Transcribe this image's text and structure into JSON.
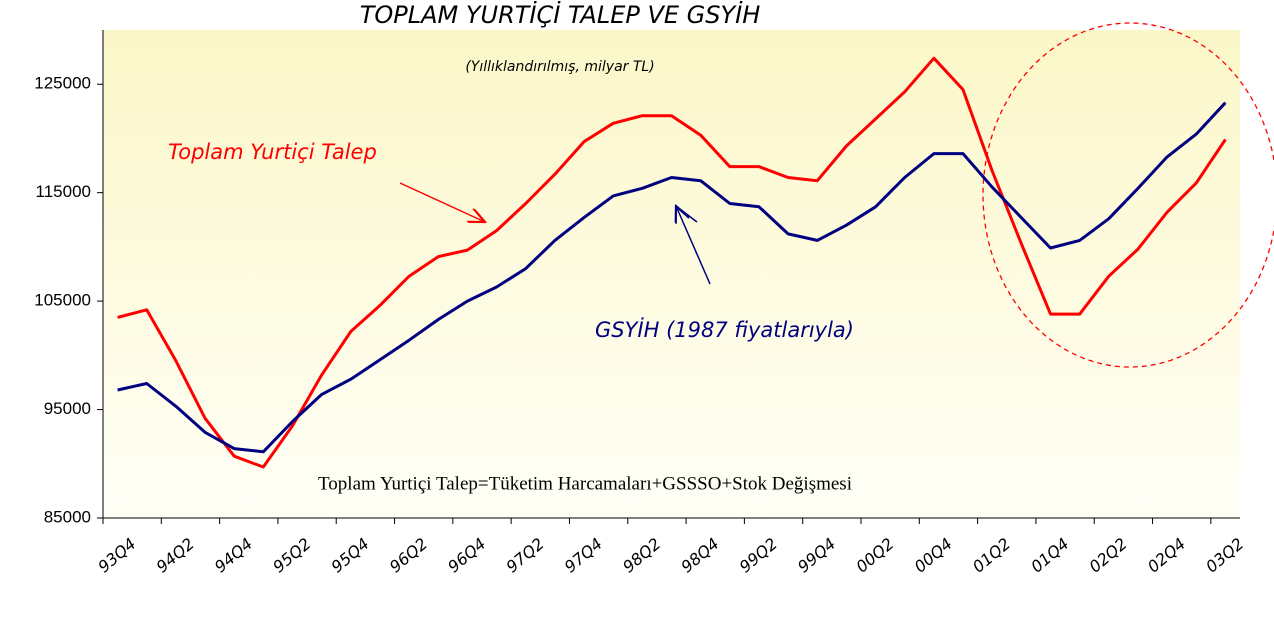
{
  "chart_data": {
    "type": "line",
    "title": "TOPLAM YURTİÇİ TALEP VE GSYİH",
    "subtitle": "(Yıllıklandırılmış, milyar TL)",
    "annotation": "Toplam Yurtiçi Talep=Tüketim Harcamaları+GSSSO+Stok Değişmesi",
    "categories": [
      "93Q4",
      null,
      "94Q2",
      null,
      "94Q4",
      null,
      "95Q2",
      null,
      "95Q4",
      null,
      "96Q2",
      null,
      "96Q4",
      null,
      "97Q2",
      null,
      "97Q4",
      null,
      "98Q2",
      null,
      "98Q4",
      null,
      "99Q2",
      null,
      "99Q4",
      null,
      "00Q2",
      null,
      "00Q4",
      null,
      "01Q2",
      null,
      "01Q4",
      null,
      "02Q2",
      null,
      "02Q4",
      null,
      "03Q2"
    ],
    "series": [
      {
        "name": "Toplam Yurtiçi Talep",
        "color": "#ff0000",
        "values": [
          103500,
          104200,
          99500,
          94200,
          90700,
          89700,
          93500,
          98200,
          102200,
          104600,
          107300,
          109100,
          109700,
          111500,
          114000,
          116700,
          119700,
          121400,
          122100,
          122100,
          120300,
          117400,
          117400,
          116400,
          116100,
          119300,
          121800,
          124300,
          127400,
          124500,
          117000,
          110300,
          103800,
          103800,
          107300,
          109800,
          113200,
          115900,
          119900
        ]
      },
      {
        "name": "GSYİH (1987 fiyatlarıyla)",
        "color": "#000080",
        "values": [
          96800,
          97400,
          95300,
          92900,
          91400,
          91100,
          93900,
          96400,
          97800,
          99600,
          101400,
          103300,
          105000,
          106300,
          108000,
          110600,
          112700,
          114700,
          115400,
          116400,
          116100,
          114000,
          113700,
          111200,
          110600,
          112000,
          113700,
          116400,
          118600,
          118600,
          115500,
          112700,
          109900,
          110600,
          112600,
          115400,
          118300,
          120400,
          123300
        ]
      }
    ],
    "ylim": [
      85000,
      130000
    ],
    "yticks": [
      85000,
      95000,
      105000,
      115000,
      125000
    ]
  }
}
